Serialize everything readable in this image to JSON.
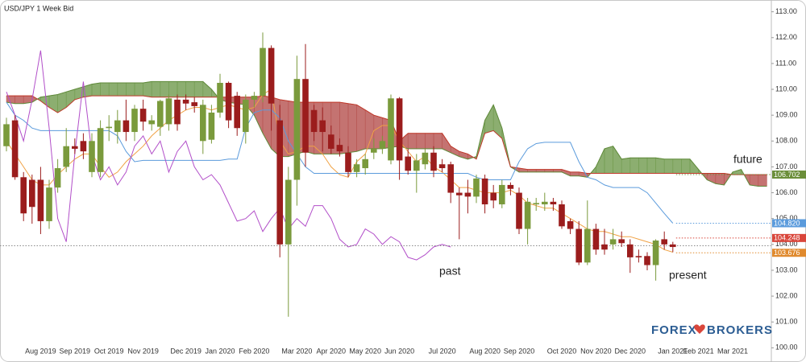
{
  "chart_data": {
    "type": "candlestick",
    "title": "USD/JPY  1 Week Bid",
    "categories": [
      null,
      null,
      null,
      null,
      "Aug 2019",
      null,
      null,
      null,
      "Sep 2019",
      null,
      null,
      null,
      "Oct 2019",
      null,
      null,
      null,
      "Nov 2019",
      null,
      null,
      null,
      null,
      "Dec 2019",
      null,
      null,
      null,
      "Jan 2020",
      null,
      null,
      null,
      "Feb 2020",
      null,
      null,
      null,
      null,
      "Mar 2020",
      null,
      null,
      null,
      "Apr 2020",
      null,
      null,
      null,
      "May 2020",
      null,
      null,
      null,
      "Jun 2020",
      null,
      null,
      null,
      null,
      "Jul 2020",
      null,
      null,
      null,
      null,
      "Aug 2020",
      null,
      null,
      null,
      "Sep 2020",
      null,
      null,
      null,
      null,
      "Oct 2020",
      null,
      null,
      null,
      "Nov 2020",
      null,
      null,
      null,
      "Dec 2020",
      null,
      null,
      null,
      null,
      "Jan 2021",
      null,
      null,
      "Feb 2021",
      null,
      null,
      null,
      "Mar 2021",
      null,
      null,
      null,
      null
    ],
    "open": [
      107.8,
      108.8,
      106.6,
      106.5,
      106.5,
      104.9,
      106.2,
      107.0,
      107.8,
      108.0,
      106.8,
      106.8,
      108.5,
      108.35,
      108.8,
      108.35,
      109.25,
      108.65,
      108.55,
      108.65,
      109.6,
      109.6,
      109.5,
      108.0,
      108.05,
      109.1,
      110.25,
      109.75,
      108.35,
      109.6,
      109.75,
      111.6,
      108.8,
      104.0,
      106.5,
      110.4,
      109.2,
      108.8,
      108.25,
      107.85,
      107.55,
      106.8,
      106.95,
      107.55,
      107.7,
      107.25,
      109.65,
      107.4,
      106.85,
      107.1,
      107.55,
      107.1,
      107.1,
      106.0,
      106.0,
      105.85,
      106.55,
      106.0,
      105.55,
      106.3,
      106.0,
      104.6,
      105.55,
      105.55,
      105.65,
      105.55,
      104.9,
      104.6,
      103.3,
      104.6,
      104.0,
      104.0,
      104.2,
      104.0,
      103.55,
      103.55,
      103.2,
      104.2,
      104.0,
      null,
      null,
      null,
      null,
      null,
      null,
      null,
      null,
      null,
      null,
      null
    ],
    "high": [
      108.9,
      109.0,
      106.8,
      106.7,
      107.0,
      106.5,
      107.3,
      108.5,
      108.1,
      108.3,
      108.3,
      108.8,
      109.0,
      109.2,
      109.6,
      109.4,
      109.6,
      109.0,
      109.6,
      109.8,
      109.8,
      109.8,
      109.7,
      109.6,
      109.4,
      110.6,
      110.3,
      109.9,
      109.8,
      109.9,
      112.2,
      111.7,
      109.4,
      107.0,
      111.3,
      111.75,
      109.4,
      109.3,
      108.6,
      108.1,
      107.8,
      107.3,
      107.5,
      108.1,
      108.2,
      109.8,
      109.7,
      107.7,
      107.5,
      107.7,
      107.8,
      107.3,
      107.2,
      106.2,
      106.5,
      106.7,
      106.7,
      106.3,
      106.5,
      106.4,
      106.2,
      105.8,
      105.8,
      106.0,
      105.8,
      105.7,
      105.0,
      104.9,
      105.7,
      104.8,
      104.6,
      104.6,
      104.5,
      104.2,
      103.8,
      103.7,
      104.2,
      104.5,
      104.1,
      null,
      null,
      null,
      null,
      null,
      null,
      null,
      null,
      null,
      null,
      null
    ],
    "low": [
      107.6,
      106.5,
      104.9,
      104.8,
      104.4,
      104.6,
      106.0,
      106.8,
      107.5,
      107.3,
      106.6,
      106.6,
      108.0,
      107.9,
      108.0,
      108.0,
      108.4,
      108.4,
      108.2,
      108.4,
      108.4,
      109.2,
      109.1,
      107.5,
      107.9,
      108.9,
      108.5,
      108.2,
      107.9,
      109.3,
      109.5,
      108.4,
      103.5,
      101.2,
      105.5,
      107.0,
      108.0,
      107.6,
      107.5,
      107.4,
      106.6,
      106.6,
      106.7,
      107.3,
      107.5,
      107.1,
      106.5,
      106.7,
      106.0,
      106.9,
      106.6,
      106.8,
      105.6,
      104.2,
      105.2,
      105.6,
      105.2,
      105.4,
      105.4,
      105.9,
      104.4,
      104.0,
      105.3,
      105.3,
      105.3,
      104.6,
      104.4,
      103.2,
      103.2,
      103.6,
      103.6,
      103.8,
      103.9,
      102.9,
      103.3,
      103.0,
      102.6,
      103.8,
      103.7,
      null,
      null,
      null,
      null,
      null,
      null,
      null,
      null,
      null,
      null,
      null
    ],
    "close": [
      108.65,
      106.6,
      105.2,
      105.45,
      104.9,
      106.2,
      106.95,
      107.8,
      107.7,
      107.6,
      108.0,
      108.5,
      108.55,
      108.8,
      108.35,
      109.25,
      108.75,
      108.8,
      109.55,
      109.65,
      108.65,
      109.45,
      109.35,
      109.4,
      109.1,
      110.25,
      108.8,
      108.5,
      109.6,
      109.75,
      111.6,
      109.45,
      104.0,
      106.5,
      110.4,
      107.55,
      108.35,
      108.35,
      107.7,
      107.6,
      106.8,
      107.1,
      107.3,
      107.7,
      108.0,
      109.65,
      107.25,
      106.85,
      107.25,
      107.55,
      106.85,
      106.95,
      106.0,
      105.9,
      105.85,
      106.55,
      105.55,
      105.7,
      106.3,
      106.15,
      104.6,
      105.65,
      105.6,
      105.65,
      105.55,
      104.7,
      104.6,
      103.3,
      104.6,
      103.8,
      103.8,
      104.2,
      104.05,
      103.5,
      103.5,
      103.2,
      104.15,
      104.0,
      103.9,
      null,
      null,
      null,
      null,
      null,
      null,
      null,
      null,
      null,
      null,
      null
    ],
    "up_color": "#7a9a3c",
    "down_color": "#9b1d1d",
    "cloud": {
      "span_a": [
        109.5,
        109.45,
        109.45,
        109.5,
        109.7,
        109.75,
        109.8,
        109.9,
        110.0,
        110.1,
        110.2,
        110.25,
        110.25,
        110.25,
        110.25,
        110.25,
        110.25,
        110.3,
        110.3,
        110.3,
        110.3,
        110.3,
        110.3,
        110.3,
        110.0,
        109.6,
        109.5,
        109.45,
        109.4,
        109.0,
        108.3,
        107.7,
        107.4,
        107.4,
        107.5,
        107.6,
        107.5,
        107.5,
        107.5,
        107.5,
        107.55,
        107.6,
        107.7,
        107.7,
        107.7,
        107.75,
        107.8,
        107.7,
        107.7,
        107.7,
        107.7,
        107.7,
        107.55,
        107.4,
        107.3,
        107.4,
        108.8,
        109.4,
        108.5,
        107.0,
        106.8,
        106.8,
        106.8,
        106.8,
        106.8,
        106.8,
        106.65,
        106.65,
        106.6,
        107.0,
        107.7,
        107.8,
        107.3,
        107.35,
        107.35,
        107.35,
        107.35,
        107.3,
        107.3,
        107.3,
        107.3,
        106.9,
        106.5,
        106.35,
        106.3,
        106.8,
        106.9,
        106.3,
        106.25,
        106.25
      ],
      "span_b": [
        109.75,
        109.75,
        109.75,
        109.75,
        109.55,
        109.3,
        109.1,
        109.3,
        109.6,
        109.7,
        109.75,
        109.75,
        109.75,
        109.75,
        109.75,
        109.75,
        109.75,
        109.7,
        109.7,
        109.7,
        109.7,
        109.7,
        109.7,
        109.7,
        109.7,
        109.7,
        109.7,
        109.7,
        109.7,
        109.7,
        109.75,
        109.7,
        109.6,
        109.55,
        109.5,
        109.5,
        109.5,
        109.5,
        109.5,
        109.5,
        109.45,
        109.4,
        109.2,
        109.0,
        108.9,
        108.8,
        108.0,
        108.3,
        108.3,
        108.3,
        108.3,
        108.3,
        107.8,
        107.6,
        107.5,
        107.3,
        108.3,
        108.4,
        108.1,
        107.0,
        106.95,
        106.9,
        106.9,
        106.9,
        106.9,
        106.9,
        106.8,
        106.8,
        106.75,
        106.75,
        106.75,
        106.75,
        106.75,
        106.75,
        106.75,
        106.75,
        106.75,
        106.75,
        106.75,
        106.75,
        106.75,
        106.75,
        106.75,
        106.75,
        106.75,
        106.7,
        106.7,
        106.7,
        106.7,
        106.7
      ],
      "span_a_color": "#5f8a3a",
      "span_b_color": "#c0392b",
      "up_fill": "#6f9a4c",
      "down_fill": "#b5504e"
    },
    "lines": [
      {
        "color": "#f0a245",
        "values": [
          108.0,
          107.5,
          107.0,
          106.5,
          106.3,
          106.3,
          106.7,
          107.0,
          107.3,
          107.5,
          107.5,
          107.0,
          106.6,
          106.8,
          107.2,
          107.5,
          107.8,
          108.2,
          108.5,
          108.8,
          109.0,
          109.2,
          109.3,
          109.3,
          109.2,
          109.3,
          109.4,
          109.3,
          109.2,
          109.3,
          109.8,
          110.0,
          108.0,
          107.5,
          107.6,
          107.8,
          107.8,
          107.5,
          107.0,
          106.7,
          106.6,
          107.2,
          107.5,
          108.4,
          108.6,
          108.6,
          108.0,
          107.6,
          107.2,
          107.4,
          107.0,
          106.8,
          106.5,
          106.2,
          106.2,
          106.1,
          106.0,
          106.0,
          106.0,
          106.1,
          105.9,
          105.6,
          105.5,
          105.4,
          105.4,
          105.2,
          105.0,
          104.8,
          104.6,
          104.5,
          104.5,
          104.4,
          104.3,
          104.3,
          104.2,
          104.1,
          104.0,
          103.8,
          103.7,
          null,
          null,
          null,
          null,
          null,
          null,
          null,
          null,
          null,
          null,
          null
        ]
      },
      {
        "color": "#5b9bdc",
        "values": [
          109.5,
          109.0,
          108.8,
          108.5,
          108.4,
          108.4,
          108.4,
          108.4,
          108.4,
          108.4,
          108.4,
          108.4,
          108.4,
          108.2,
          107.6,
          107.2,
          107.25,
          107.25,
          107.25,
          107.25,
          107.25,
          107.25,
          107.25,
          107.25,
          107.25,
          107.25,
          107.3,
          107.3,
          108.5,
          109.1,
          109.2,
          109.2,
          108.9,
          108.0,
          107.5,
          107.0,
          106.75,
          106.75,
          106.75,
          106.75,
          106.75,
          106.75,
          106.75,
          106.75,
          106.75,
          106.75,
          106.75,
          106.75,
          106.75,
          106.75,
          106.75,
          106.75,
          106.75,
          106.75,
          106.75,
          106.6,
          106.5,
          106.5,
          106.5,
          106.5,
          107.2,
          107.7,
          107.9,
          107.95,
          107.95,
          107.95,
          107.95,
          107.2,
          106.6,
          106.5,
          106.3,
          106.2,
          106.2,
          106.2,
          106.2,
          106.0,
          105.6,
          105.2,
          104.82,
          null,
          null,
          null,
          null,
          null,
          null,
          null,
          null,
          null,
          null,
          null
        ]
      },
      {
        "color": "#b24fc9",
        "values": [
          109.9,
          109.0,
          108.0,
          109.6,
          111.5,
          108.5,
          105.0,
          104.1,
          107.5,
          110.3,
          107.5,
          106.5,
          107.0,
          106.3,
          106.8,
          107.8,
          108.2,
          107.5,
          108.0,
          106.8,
          107.6,
          108.0,
          107.0,
          106.5,
          106.7,
          106.3,
          105.6,
          104.9,
          105.0,
          105.3,
          104.5,
          105.0,
          105.4,
          104.6,
          105.0,
          104.7,
          105.5,
          105.5,
          105.0,
          104.2,
          103.9,
          104.0,
          104.6,
          104.4,
          104.0,
          104.3,
          104.1,
          103.5,
          103.4,
          103.6,
          103.9,
          104.0,
          103.9,
          null,
          null,
          null,
          null,
          null,
          null,
          null,
          null,
          null,
          null,
          null,
          null,
          null,
          null,
          null,
          null,
          null,
          null,
          null,
          null,
          null,
          null,
          null,
          null,
          null,
          null,
          null,
          null,
          null,
          null,
          null,
          null,
          null,
          null,
          null,
          null,
          null
        ]
      }
    ],
    "price_line": 103.95,
    "price_tags": [
      {
        "value": 106.702,
        "label": "106.702",
        "color": "#6b8e3a"
      },
      {
        "value": 104.82,
        "label": "104.820",
        "color": "#5b9bdc"
      },
      {
        "value": 104.248,
        "label": "104.248",
        "color": "#d9463b"
      },
      {
        "value": 103.676,
        "label": "103.676",
        "color": "#e08a2e"
      }
    ],
    "ylim": [
      99.7,
      113.3
    ],
    "yticks": [
      {
        "value": 113,
        "label": "113.00"
      },
      {
        "value": 112,
        "label": "112.00"
      },
      {
        "value": 111,
        "label": "111.00"
      },
      {
        "value": 110,
        "label": "110.00"
      },
      {
        "value": 109,
        "label": "109.00"
      },
      {
        "value": 108,
        "label": "108.00"
      },
      {
        "value": 107,
        "label": "107.00"
      },
      {
        "value": 106,
        "label": "106.00"
      },
      {
        "value": 105,
        "label": "105.00"
      },
      {
        "value": 104,
        "label": "104.00"
      },
      {
        "value": 103,
        "label": "103.00"
      },
      {
        "value": 102,
        "label": "102.00"
      },
      {
        "value": 101,
        "label": "101.00"
      },
      {
        "value": 100,
        "label": "100.00"
      }
    ],
    "grid": false,
    "annotations": [
      "past",
      "present",
      "future"
    ],
    "logo": [
      "FOREX",
      "BROKERS"
    ]
  }
}
